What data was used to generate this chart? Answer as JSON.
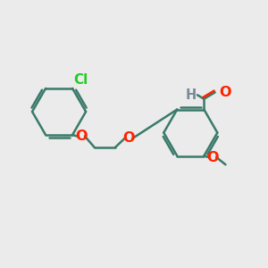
{
  "background_color": "#ebebeb",
  "bond_color": "#3a7a6a",
  "bond_width": 1.8,
  "atom_colors": {
    "O": "#ff2200",
    "Cl": "#22cc22",
    "H": "#7a8a99"
  },
  "font_size_main": 10.5,
  "font_size_H": 10.5
}
